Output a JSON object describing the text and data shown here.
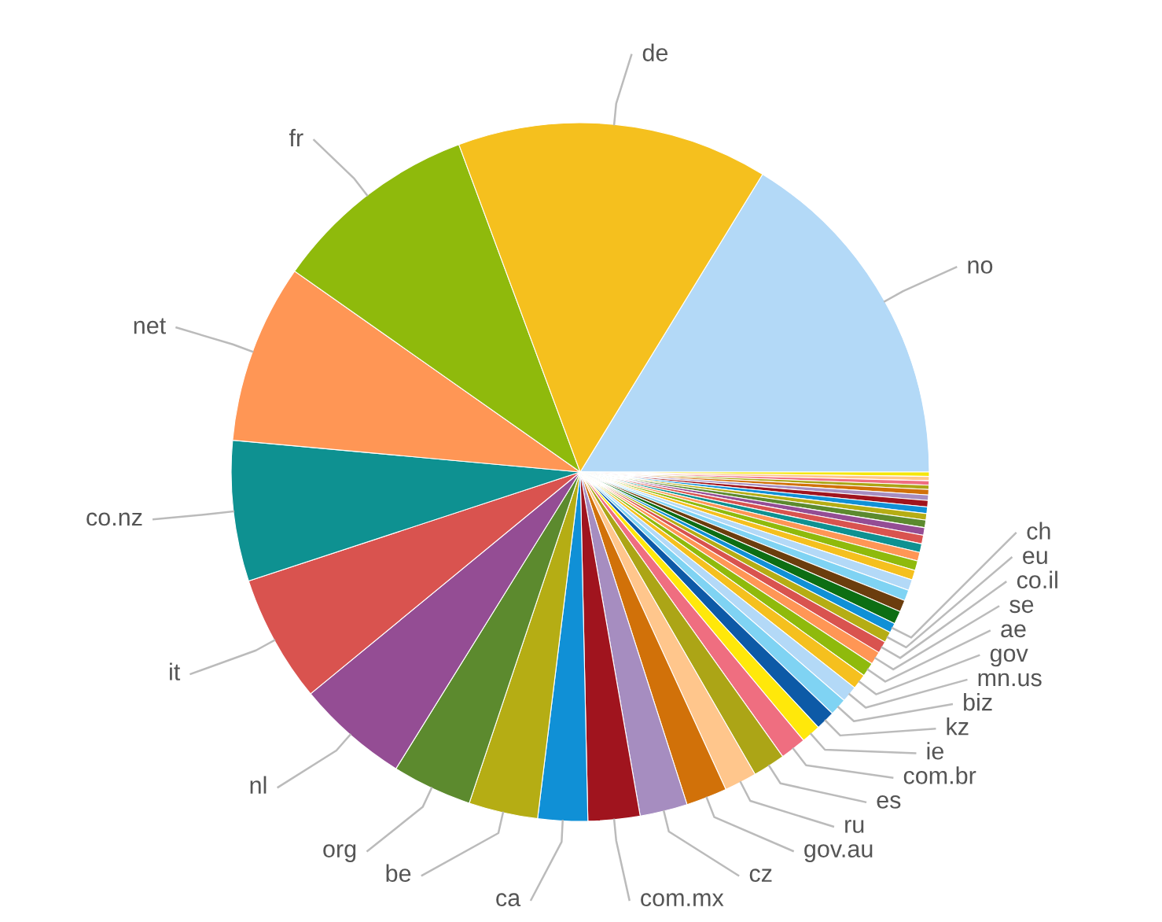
{
  "chart_data": {
    "type": "pie",
    "categories": [
      "no",
      null,
      null,
      null,
      null,
      null,
      null,
      null,
      null,
      null,
      null,
      null,
      null,
      null,
      null,
      null,
      null,
      null,
      null,
      null,
      null,
      "ch",
      "eu",
      "co.il",
      "se",
      "ae",
      "gov",
      "mn.us",
      "biz",
      "kz",
      "ie",
      "com.br",
      "es",
      "ru",
      "gov.au",
      "cz",
      "com.mx",
      "ca",
      "be",
      "org",
      "nl",
      "it",
      "co.nz",
      "net",
      "fr",
      "de"
    ],
    "values": [
      16.25,
      0.2,
      0.2,
      0.2,
      0.2,
      0.25,
      0.25,
      0.3,
      0.3,
      0.3,
      0.35,
      0.35,
      0.4,
      0.4,
      0.4,
      0.45,
      0.45,
      0.5,
      0.5,
      0.55,
      0.6,
      0.45,
      0.5,
      0.55,
      0.6,
      0.65,
      0.7,
      0.75,
      0.8,
      0.9,
      0.9,
      1.2,
      1.5,
      1.5,
      1.9,
      2.2,
      2.4,
      2.3,
      3.2,
      3.7,
      5.2,
      5.9,
      6.5,
      8.3,
      9.6,
      14.4
    ],
    "colors": [
      "#b3d9f7",
      "#f5e60a",
      "#ffc68c",
      "#ef6e80",
      "#aca516",
      "#d17109",
      "#a68dc0",
      "#a0141e",
      "#1090d6",
      "#b5ad14",
      "#5c8a2e",
      "#944d94",
      "#d9534f",
      "#0e9191",
      "#ff9655",
      "#8fba0c",
      "#f5c01e",
      "#b3d9f7",
      "#7fd3f3",
      "#6b3d0d",
      "#0d6e13",
      "#1090d6",
      "#b5ad14",
      "#d9534f",
      "#ff9655",
      "#8fba0c",
      "#f5c01e",
      "#b3d9f7",
      "#7fd3f3",
      "#0d5aa7",
      "#ffe80a",
      "#ef6e80",
      "#aca516",
      "#ffc68c",
      "#d17109",
      "#a68dc0",
      "#a0141e",
      "#1090d6",
      "#b5ad14",
      "#5c8a2e",
      "#944d94",
      "#d9534f",
      "#0e9191",
      "#ff9655",
      "#8fba0c",
      "#f5c01e"
    ]
  }
}
